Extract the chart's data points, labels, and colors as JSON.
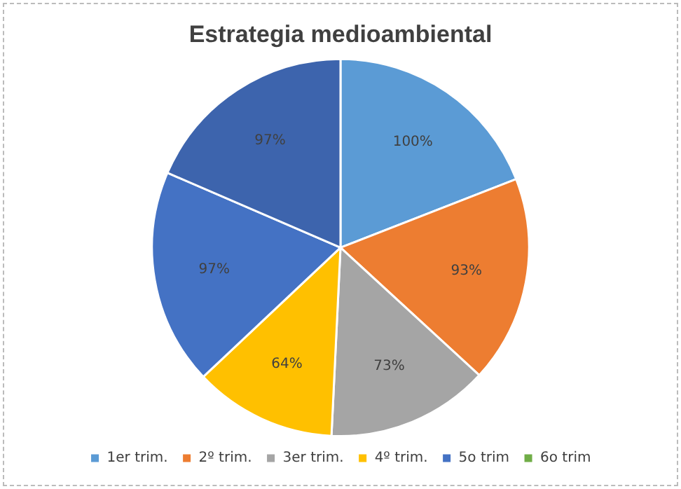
{
  "chart_data": {
    "type": "pie",
    "title": "Estrategia medioambiental",
    "categories": [
      "1er trim.",
      "2º trim.",
      "3er trim.",
      "4º trim.",
      "5o trim",
      "6o trim",
      null
    ],
    "values": [
      100,
      93,
      73,
      64,
      97,
      null,
      97
    ],
    "value_labels": [
      "100%",
      "93%",
      "73%",
      "64%",
      "97%",
      null,
      "97%"
    ],
    "colors": [
      "#5b9bd5",
      "#ed7d31",
      "#a5a5a5",
      "#ffc000",
      "#4472c4",
      "#70ad47",
      "#3d64ad"
    ],
    "legend": "bottom"
  }
}
